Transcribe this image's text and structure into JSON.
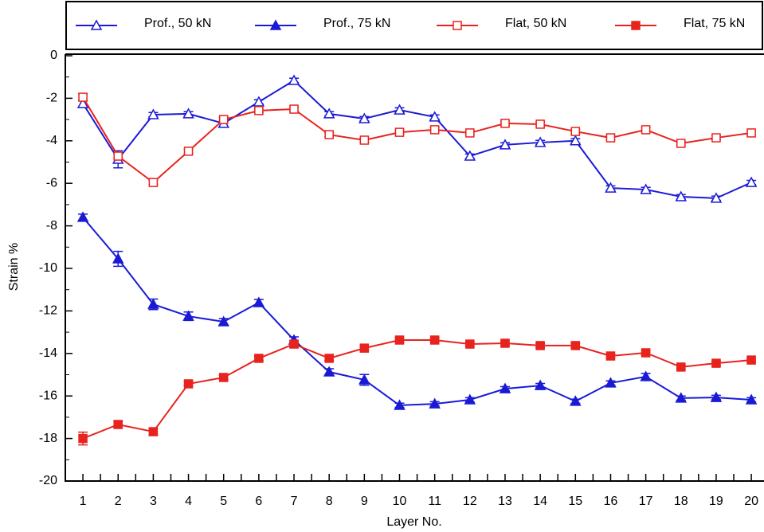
{
  "chart_data": {
    "type": "line",
    "x_label": "Layer No.",
    "y_label": "Strain %",
    "x": [
      1,
      2,
      3,
      4,
      5,
      6,
      7,
      8,
      9,
      10,
      11,
      12,
      13,
      14,
      15,
      16,
      17,
      18,
      19,
      20
    ],
    "xlim": [
      0.5,
      20.36
    ],
    "ylim": [
      -20,
      0
    ],
    "yticks": [
      0,
      -2,
      -4,
      -6,
      -8,
      -10,
      -12,
      -14,
      -16,
      -18,
      -20
    ],
    "legend": "top",
    "series": [
      {
        "name": "Prof., 50 kN",
        "color": "#1a1ad6",
        "marker": "triangle",
        "filled": false,
        "values": [
          -2.25,
          -4.87,
          -2.77,
          -2.73,
          -3.18,
          -2.17,
          -1.16,
          -2.73,
          -2.96,
          -2.55,
          -2.88,
          -4.72,
          -4.19,
          -4.08,
          -4.0,
          -6.22,
          -6.29,
          -6.63,
          -6.7,
          -5.96
        ],
        "errors": [
          0.15,
          0.4,
          0.1,
          0.1,
          0.15,
          0.1,
          0.1,
          0.1,
          0.1,
          0.1,
          0.1,
          0.1,
          0.1,
          0.1,
          0.1,
          0.1,
          0.1,
          0.1,
          0.1,
          0.1
        ]
      },
      {
        "name": "Prof., 75 kN",
        "color": "#1a1ad6",
        "marker": "triangle",
        "filled": true,
        "values": [
          -7.6,
          -9.55,
          -11.69,
          -12.25,
          -12.51,
          -11.61,
          -13.37,
          -14.87,
          -15.24,
          -16.44,
          -16.37,
          -16.18,
          -15.66,
          -15.51,
          -16.25,
          -15.39,
          -15.09,
          -16.1,
          -16.07,
          -16.18
        ],
        "errors": [
          0.15,
          0.35,
          0.25,
          0.2,
          0.15,
          0.15,
          0.15,
          0.15,
          0.25,
          0.1,
          0.1,
          0.1,
          0.1,
          0.1,
          0.1,
          0.1,
          0.15,
          0.1,
          0.1,
          0.1
        ]
      },
      {
        "name": "Flat, 50 kN",
        "color": "#e8231e",
        "marker": "square",
        "filled": false,
        "values": [
          -1.95,
          -4.72,
          -5.96,
          -4.49,
          -3.0,
          -2.58,
          -2.51,
          -3.71,
          -3.97,
          -3.6,
          -3.48,
          -3.63,
          -3.18,
          -3.22,
          -3.56,
          -3.86,
          -3.48,
          -4.12,
          -3.86,
          -3.63
        ],
        "errors": [
          0.15,
          0.1,
          0.1,
          0.1,
          0.1,
          0.1,
          0.1,
          0.1,
          0.1,
          0.1,
          0.1,
          0.1,
          0.1,
          0.1,
          0.1,
          0.1,
          0.1,
          0.1,
          0.1,
          0.1
        ]
      },
      {
        "name": "Flat, 75 kN",
        "color": "#e8231e",
        "marker": "square",
        "filled": true,
        "values": [
          -18.0,
          -17.34,
          -17.68,
          -15.43,
          -15.13,
          -14.23,
          -13.56,
          -14.23,
          -13.75,
          -13.37,
          -13.37,
          -13.56,
          -13.52,
          -13.63,
          -13.63,
          -14.12,
          -13.97,
          -14.64,
          -14.46,
          -14.31
        ],
        "errors": [
          0.3,
          0.15,
          0.15,
          0.1,
          0.1,
          0.1,
          0.15,
          0.1,
          0.1,
          0.1,
          0.1,
          0.1,
          0.1,
          0.1,
          0.1,
          0.1,
          0.1,
          0.1,
          0.1,
          0.1
        ]
      }
    ]
  }
}
